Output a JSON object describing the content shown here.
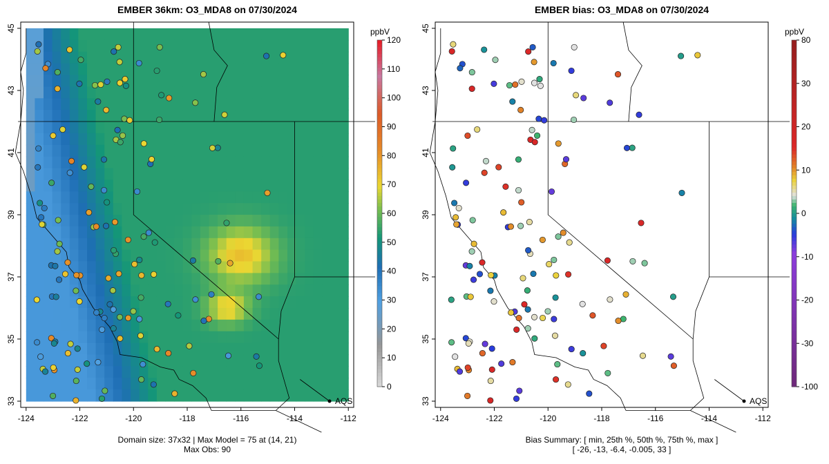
{
  "left": {
    "title": "EMBER 36km: O3_MDA8 on 07/30/2024",
    "caption1": "Domain size: 37x32 | Max Model = 75 at (14, 21)",
    "caption2": "Max Obs: 90",
    "units": "ppbV",
    "cbar_ticks": [
      "120",
      "110",
      "100",
      "90",
      "80",
      "70",
      "60",
      "50",
      "40",
      "30",
      "20",
      "10",
      "0"
    ],
    "aqs_label": "AQS"
  },
  "right": {
    "title": "EMBER bias: O3_MDA8 on 07/30/2024",
    "caption1": "Bias Summary: [ min, 25th %, 50th %, 75th %, max ]",
    "caption2": "[ -26,   -13,   -6.4,   -0.005,   33 ]",
    "units": "ppbV",
    "cbar_ticks": [
      "80",
      "30",
      "20",
      "10",
      "0",
      "-10",
      "-20",
      "-30",
      "-100"
    ],
    "aqs_label": "AQS"
  },
  "axes": {
    "x_ticks": [
      "-124",
      "-122",
      "-120",
      "-118",
      "-116",
      "-114",
      "-112"
    ],
    "y_ticks": [
      "33",
      "35",
      "37",
      "39",
      "41",
      "43",
      "45"
    ],
    "lon_range": [
      -124.2,
      -111.8
    ],
    "lat_range": [
      32.8,
      45.2
    ]
  },
  "colors": {
    "ocean": "#6aa9dc",
    "low": "#4f9fd8",
    "mid": "#2e9a6e",
    "high": "#e6d83a"
  }
}
